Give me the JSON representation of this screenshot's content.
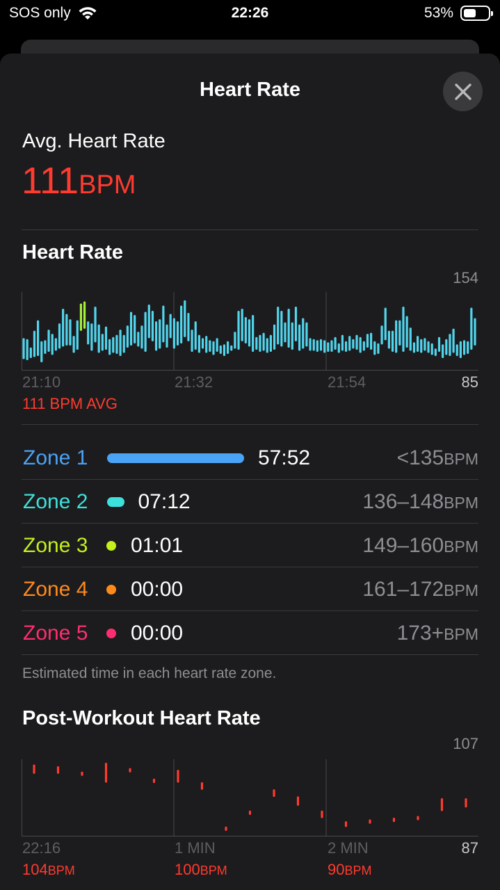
{
  "status_bar": {
    "carrier": "SOS only",
    "time": "22:26",
    "battery": "53%",
    "battery_level": 0.53
  },
  "sheet": {
    "title": "Heart Rate"
  },
  "summary": {
    "label": "Avg. Heart Rate",
    "value": "111",
    "unit": "BPM"
  },
  "heart_rate_chart": {
    "title": "Heart Rate",
    "y_max_label": "154",
    "y_min_label": "85",
    "x_labels": [
      "21:10",
      "21:32",
      "21:54"
    ],
    "avg_caption": "111 BPM AVG"
  },
  "zones": [
    {
      "name": "Zone 1",
      "time": "57:52",
      "range": "<135",
      "unit": "BPM",
      "color": "#4aa3f6",
      "minutes": 57.87
    },
    {
      "name": "Zone 2",
      "time": "07:12",
      "range": "136–148",
      "unit": "BPM",
      "color": "#3ce1dc",
      "minutes": 7.2
    },
    {
      "name": "Zone 3",
      "time": "01:01",
      "range": "149–160",
      "unit": "BPM",
      "color": "#c4f01c",
      "minutes": 1.02
    },
    {
      "name": "Zone 4",
      "time": "00:00",
      "range": "161–172",
      "unit": "BPM",
      "color": "#ff8a1c",
      "minutes": 0
    },
    {
      "name": "Zone 5",
      "time": "00:00",
      "range": "173+",
      "unit": "BPM",
      "color": "#ff2d6f",
      "minutes": 0
    }
  ],
  "zones_footnote": "Estimated time in each heart rate zone.",
  "post_workout": {
    "title": "Post-Workout Heart Rate",
    "y_max_label": "107",
    "y_min_label": "87",
    "x_labels": [
      "22:16",
      "1 MIN",
      "2 MIN"
    ],
    "values": [
      {
        "value": "104",
        "unit": "BPM"
      },
      {
        "value": "100",
        "unit": "BPM"
      },
      {
        "value": "90",
        "unit": "BPM"
      }
    ]
  },
  "colors": {
    "accent_red": "#ff3b2f",
    "hr_line": "#52d6ee",
    "hr_peak": "#a6ef3a",
    "sheet_bg": "#1c1c1e"
  },
  "chart_data": [
    {
      "type": "bar",
      "title": "Heart Rate",
      "xlabel": "",
      "ylabel": "BPM",
      "ylim": [
        85,
        154
      ],
      "x_ticks": [
        "21:10",
        "21:32",
        "21:54"
      ],
      "series": [
        {
          "name": "Heart Rate range",
          "values": [
            [
              95,
              113
            ],
            [
              94,
              112
            ],
            [
              96,
              104
            ],
            [
              97,
              120
            ],
            [
              98,
              130
            ],
            [
              92,
              110
            ],
            [
              100,
              111
            ],
            [
              102,
              121
            ],
            [
              99,
              117
            ],
            [
              103,
              113
            ],
            [
              105,
              127
            ],
            [
              107,
              141
            ],
            [
              108,
              136
            ],
            [
              108,
              131
            ],
            [
              101,
              115
            ],
            [
              104,
              130
            ],
            [
              122,
              146
            ],
            [
              124,
              148
            ],
            [
              109,
              129
            ],
            [
              103,
              127
            ],
            [
              111,
              143
            ],
            [
              101,
              126
            ],
            [
              103,
              117
            ],
            [
              104,
              124
            ],
            [
              99,
              112
            ],
            [
              101,
              114
            ],
            [
              100,
              116
            ],
            [
              98,
              121
            ],
            [
              101,
              116
            ],
            [
              106,
              125
            ],
            [
              108,
              138
            ],
            [
              110,
              135
            ],
            [
              107,
              119
            ],
            [
              105,
              125
            ],
            [
              102,
              138
            ],
            [
              115,
              145
            ],
            [
              112,
              139
            ],
            [
              103,
              129
            ],
            [
              105,
              131
            ],
            [
              111,
              144
            ],
            [
              106,
              126
            ],
            [
              115,
              136
            ],
            [
              105,
              132
            ],
            [
              108,
              129
            ],
            [
              110,
              144
            ],
            [
              116,
              149
            ],
            [
              112,
              137
            ],
            [
              102,
              121
            ],
            [
              104,
              129
            ],
            [
              101,
              116
            ],
            [
              105,
              113
            ],
            [
              101,
              115
            ],
            [
              102,
              111
            ],
            [
              99,
              110
            ],
            [
              102,
              113
            ],
            [
              100,
              106
            ],
            [
              98,
              107
            ],
            [
              100,
              110
            ],
            [
              103,
              106
            ],
            [
              105,
              119
            ],
            [
              104,
              139
            ],
            [
              112,
              141
            ],
            [
              110,
              133
            ],
            [
              107,
              131
            ],
            [
              102,
              135
            ],
            [
              104,
              114
            ],
            [
              102,
              116
            ],
            [
              103,
              118
            ],
            [
              101,
              113
            ],
            [
              102,
              116
            ],
            [
              104,
              126
            ],
            [
              109,
              143
            ],
            [
              107,
              139
            ],
            [
              111,
              128
            ],
            [
              106,
              141
            ],
            [
              104,
              128
            ],
            [
              112,
              143
            ],
            [
              103,
              126
            ],
            [
              105,
              132
            ],
            [
              107,
              128
            ],
            [
              103,
              113
            ],
            [
              103,
              112
            ],
            [
              102,
              111
            ],
            [
              103,
              112
            ],
            [
              101,
              111
            ],
            [
              102,
              109
            ],
            [
              102,
              111
            ],
            [
              104,
              114
            ],
            [
              101,
              108
            ],
            [
              103,
              116
            ],
            [
              102,
              110
            ],
            [
              103,
              115
            ],
            [
              105,
              112
            ],
            [
              104,
              116
            ],
            [
              101,
              114
            ],
            [
              103,
              110
            ],
            [
              106,
              117
            ],
            [
              104,
              118
            ],
            [
              99,
              110
            ],
            [
              100,
              108
            ],
            [
              109,
              125
            ],
            [
              113,
              142
            ],
            [
              105,
              120
            ],
            [
              102,
              120
            ],
            [
              101,
              130
            ],
            [
              108,
              130
            ],
            [
              102,
              143
            ],
            [
              106,
              134
            ],
            [
              103,
              123
            ],
            [
              101,
              109
            ],
            [
              102,
              115
            ],
            [
              101,
              112
            ],
            [
              103,
              113
            ],
            [
              101,
              110
            ],
            [
              99,
              108
            ],
            [
              98,
              103
            ],
            [
              102,
              114
            ],
            [
              96,
              107
            ],
            [
              99,
              112
            ],
            [
              98,
              117
            ],
            [
              101,
              122
            ],
            [
              98,
              107
            ],
            [
              96,
              110
            ],
            [
              99,
              111
            ],
            [
              100,
              110
            ],
            [
              104,
              142
            ],
            [
              108,
              132
            ]
          ]
        }
      ],
      "average": 111
    },
    {
      "type": "bar",
      "title": "Post-Workout Heart Rate",
      "xlabel": "",
      "ylabel": "BPM",
      "ylim": [
        87,
        107
      ],
      "x_ticks": [
        "22:16",
        "1 MIN",
        "2 MIN"
      ],
      "series": [
        {
          "name": "Post-workout range",
          "values": [
            [
              104,
              106
            ],
            [
              104,
              105.5
            ],
            [
              103.5,
              104
            ],
            [
              101.5,
              106.5
            ],
            [
              104.6,
              105
            ],
            [
              101.5,
              102
            ],
            [
              101.5,
              104.5
            ],
            [
              99.5,
              101
            ],
            [
              88,
              88.5
            ],
            [
              92.5,
              93
            ],
            [
              97.5,
              99
            ],
            [
              95,
              97
            ],
            [
              91.5,
              93
            ],
            [
              89,
              90
            ],
            [
              90,
              90.5
            ],
            [
              90.5,
              91
            ],
            [
              91,
              91.5
            ],
            [
              93.5,
              96.5
            ],
            [
              94.5,
              96.5
            ]
          ]
        }
      ]
    }
  ]
}
